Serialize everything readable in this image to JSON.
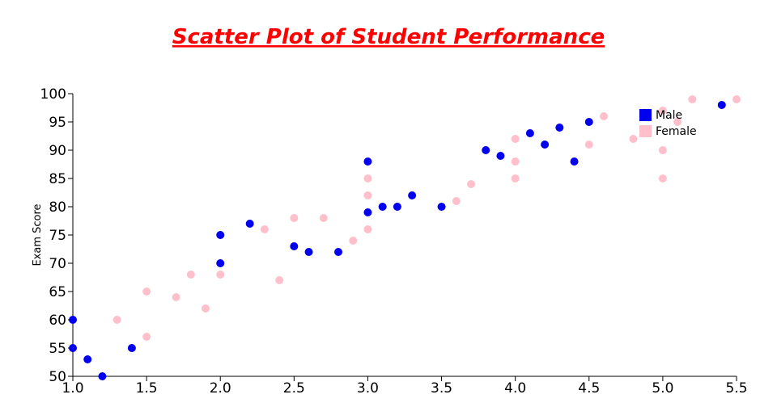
{
  "chart_data": {
    "type": "scatter",
    "title": "Scatter Plot of Student Performance",
    "y_label": "Exam Score",
    "xlim": [
      1.0,
      5.5
    ],
    "xticks": [
      {
        "value": 1,
        "label": "1.0"
      },
      1.5,
      {
        "value": 2,
        "label": "2.0"
      },
      2.5,
      {
        "value": 3,
        "label": "3.0"
      },
      3.5,
      {
        "value": 4,
        "label": "4.0"
      },
      4.5,
      {
        "value": 5,
        "label": "5.0"
      },
      5.5
    ],
    "ylim": [
      50,
      100
    ],
    "yticks": [
      50,
      55,
      60,
      65,
      70,
      75,
      80,
      85,
      90,
      95,
      100
    ],
    "legend": "top-right",
    "series": [
      {
        "name": "Male",
        "color": "#0000ee",
        "x": [
          1.0,
          1.0,
          1.1,
          1.2,
          1.4,
          2.0,
          2.0,
          2.2,
          2.5,
          2.6,
          2.8,
          3.0,
          3.0,
          3.1,
          3.2,
          3.3,
          3.5,
          3.8,
          3.9,
          4.1,
          4.2,
          4.3,
          4.4,
          4.5,
          5.4
        ],
        "values": [
          60,
          55,
          53,
          50,
          55,
          75,
          70,
          77,
          73,
          72,
          72,
          88,
          79,
          80,
          80,
          82,
          80,
          90,
          89,
          93,
          91,
          94,
          88,
          95,
          98
        ]
      },
      {
        "name": "Female",
        "color": "#ffc0cb",
        "x": [
          1.3,
          1.5,
          1.5,
          1.7,
          1.8,
          1.9,
          2.0,
          2.3,
          2.4,
          2.5,
          2.7,
          2.9,
          3.0,
          3.0,
          3.0,
          3.6,
          3.7,
          4.0,
          4.0,
          4.0,
          4.5,
          4.6,
          4.8,
          5.0,
          5.0,
          5.0,
          5.1,
          5.2,
          5.5
        ],
        "values": [
          60,
          65,
          57,
          64,
          68,
          62,
          68,
          76,
          67,
          78,
          78,
          74,
          85,
          82,
          76,
          81,
          84,
          92,
          88,
          85,
          91,
          96,
          92,
          97,
          90,
          85,
          95,
          99,
          99
        ]
      }
    ]
  }
}
